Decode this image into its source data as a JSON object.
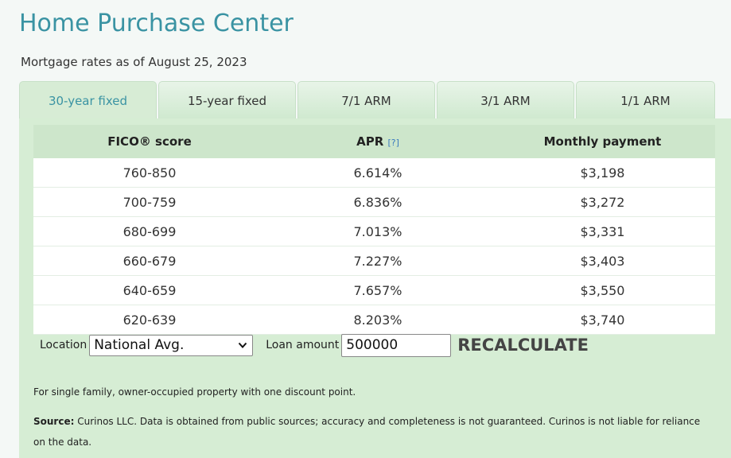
{
  "header": {
    "title": "Home Purchase Center",
    "subtitle": "Mortgage rates as of August 25, 2023"
  },
  "tabs": [
    {
      "label": "30-year fixed",
      "active": true
    },
    {
      "label": "15-year fixed",
      "active": false
    },
    {
      "label": "7/1 ARM",
      "active": false
    },
    {
      "label": "3/1 ARM",
      "active": false
    },
    {
      "label": "1/1 ARM",
      "active": false
    }
  ],
  "table": {
    "columns": [
      "FICO® score",
      "APR",
      "Monthly payment"
    ],
    "apr_help": "[?]",
    "rows": [
      [
        "760-850",
        "6.614%",
        "$3,198"
      ],
      [
        "700-759",
        "6.836%",
        "$3,272"
      ],
      [
        "680-699",
        "7.013%",
        "$3,331"
      ],
      [
        "660-679",
        "7.227%",
        "$3,403"
      ],
      [
        "640-659",
        "7.657%",
        "$3,550"
      ],
      [
        "620-639",
        "8.203%",
        "$3,740"
      ]
    ]
  },
  "controls": {
    "location_label": "Location",
    "location_value": "National Avg.",
    "loan_label": "Loan amount",
    "loan_value": "500000",
    "recalc_label": "RECALCULATE"
  },
  "notes": {
    "discount": "For single family, owner-occupied property with one discount point.",
    "source_label": "Source:",
    "source_text": " Curinos LLC. Data is obtained from public sources; accuracy and completeness is not guaranteed. Curinos is not liable for reliance on the data."
  },
  "colors": {
    "accent": "#3a93a3",
    "panel": "#d6edd4",
    "link": "#3a7bbf"
  },
  "icons": {
    "location_dropdown": "chevron-down-icon"
  }
}
